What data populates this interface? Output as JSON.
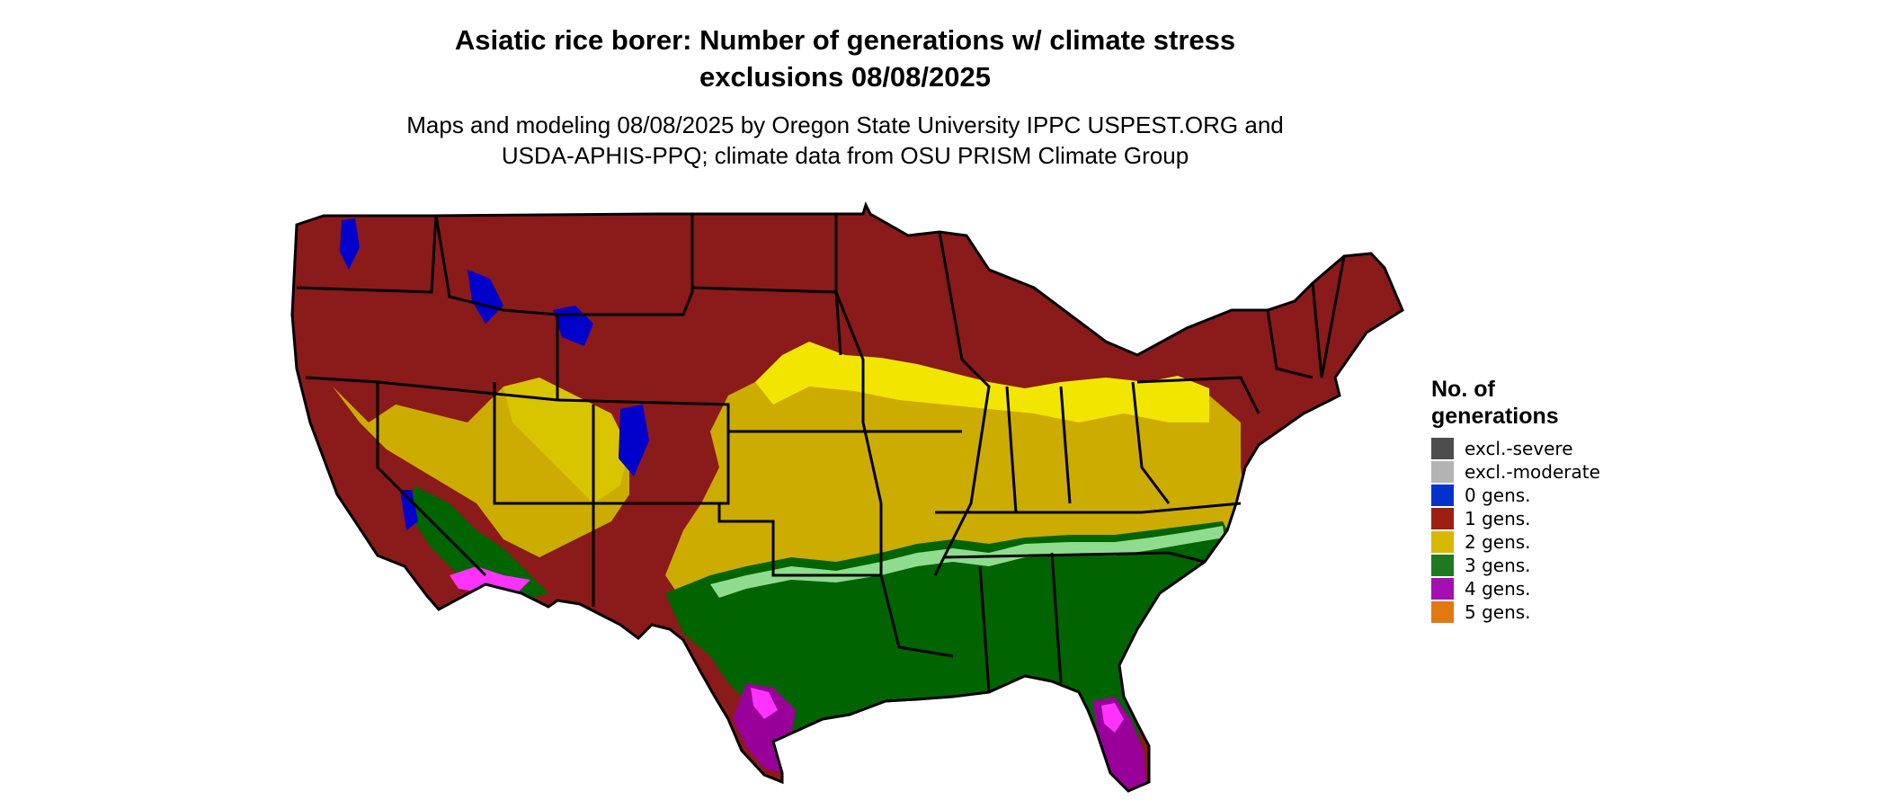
{
  "title": {
    "line1": "Asiatic rice borer: Number of generations w/ climate stress",
    "line2": "exclusions 08/08/2025"
  },
  "subtitle": {
    "line1": "Maps and modeling 08/08/2025 by Oregon State University IPPC USPEST.ORG and",
    "line2": "USDA-APHIS-PPQ; climate data from OSU PRISM Climate Group"
  },
  "legend": {
    "title_line1": "No. of",
    "title_line2": "generations",
    "items": [
      {
        "label": "excl.-severe",
        "color": "#4d4d4d"
      },
      {
        "label": "excl.-moderate",
        "color": "#b3b3b3"
      },
      {
        "label": "0 gens.",
        "color": "#0033cc"
      },
      {
        "label": "1 gens.",
        "color": "#9c1f12"
      },
      {
        "label": "2 gens.",
        "color": "#d9b800"
      },
      {
        "label": "3 gens.",
        "color": "#1f7a1f"
      },
      {
        "label": "4 gens.",
        "color": "#a30fb0"
      },
      {
        "label": "5 gens.",
        "color": "#e07a10"
      }
    ]
  },
  "map_colors": {
    "one_gen": "#8b1a1a",
    "two_gen": "#ccac00",
    "two_gen_light": "#f2e600",
    "three_gen": "#006400",
    "three_gen_light": "#8fdc8f",
    "four_gen": "#990099",
    "four_gen_light": "#ff33ff",
    "zero_gen": "#0000cc",
    "edge": "#ff4500",
    "border": "#000000"
  }
}
